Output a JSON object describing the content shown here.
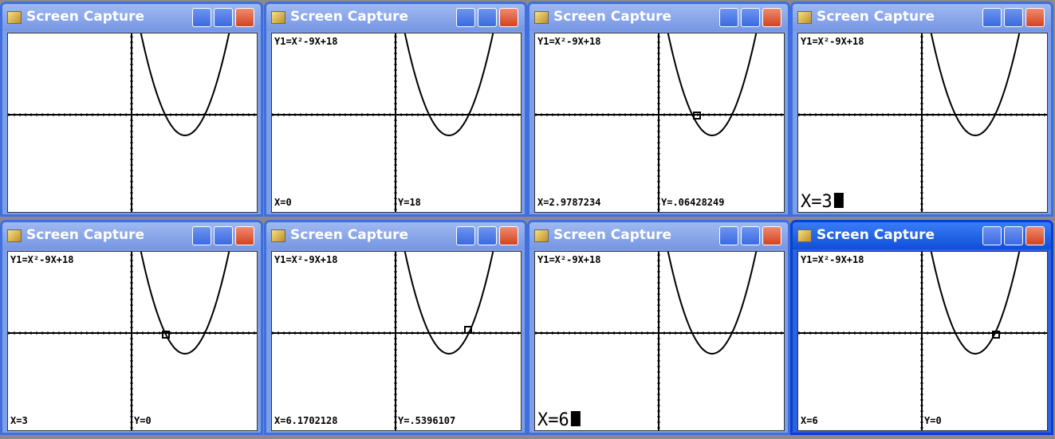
{
  "windows": [
    {
      "title": "Screen Capture"
    },
    {
      "title": "Screen Capture",
      "equation": "Y1=X²-9X+18",
      "x_readout": "X=0",
      "y_readout": "Y=18"
    },
    {
      "title": "Screen Capture",
      "equation": "Y1=X²-9X+18",
      "x_readout": "X=2.9787234",
      "y_readout": "Y=.06428249"
    },
    {
      "title": "Screen Capture",
      "equation": "Y1=X²-9X+18",
      "x_readout": "X=3"
    },
    {
      "title": "Screen Capture",
      "equation": "Y1=X²-9X+18",
      "x_readout": "X=3",
      "y_readout": "Y=0"
    },
    {
      "title": "Screen Capture",
      "equation": "Y1=X²-9X+18",
      "x_readout": "X=6.1702128",
      "y_readout": "Y=.5396107"
    },
    {
      "title": "Screen Capture",
      "equation": "Y1=X²-9X+18",
      "x_readout": "X=6"
    },
    {
      "title": "Screen Capture",
      "equation": "Y1=X²-9X+18",
      "x_readout": "X=6",
      "y_readout": "Y=0"
    }
  ]
}
